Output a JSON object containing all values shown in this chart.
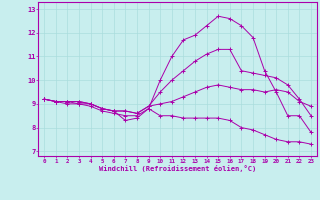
{
  "xlabel": "Windchill (Refroidissement éolien,°C)",
  "xlim": [
    -0.5,
    23.5
  ],
  "ylim": [
    6.8,
    13.3
  ],
  "yticks": [
    7,
    8,
    9,
    10,
    11,
    12,
    13
  ],
  "xticks": [
    0,
    1,
    2,
    3,
    4,
    5,
    6,
    7,
    8,
    9,
    10,
    11,
    12,
    13,
    14,
    15,
    16,
    17,
    18,
    19,
    20,
    21,
    22,
    23
  ],
  "line_color": "#aa00aa",
  "bg_color": "#c8eeee",
  "grid_color": "#aadddd",
  "line1_y": [
    9.2,
    9.1,
    9.1,
    9.1,
    9.0,
    8.8,
    8.7,
    8.3,
    8.4,
    8.8,
    8.5,
    8.5,
    8.4,
    8.4,
    8.4,
    8.4,
    8.3,
    8.0,
    7.9,
    7.7,
    7.5,
    7.4,
    7.4,
    7.3
  ],
  "line2_y": [
    9.2,
    9.1,
    9.1,
    9.1,
    9.0,
    8.8,
    8.7,
    8.7,
    8.6,
    8.9,
    9.0,
    9.1,
    9.3,
    9.5,
    9.7,
    9.8,
    9.7,
    9.6,
    9.6,
    9.5,
    9.6,
    9.5,
    9.1,
    8.9
  ],
  "line3_y": [
    9.2,
    9.1,
    9.1,
    9.0,
    9.0,
    8.8,
    8.7,
    8.7,
    8.6,
    8.9,
    9.5,
    10.0,
    10.4,
    10.8,
    11.1,
    11.3,
    11.3,
    10.4,
    10.3,
    10.2,
    10.1,
    9.8,
    9.2,
    8.5
  ],
  "line4_y": [
    9.2,
    9.1,
    9.0,
    9.0,
    8.9,
    8.7,
    8.6,
    8.5,
    8.5,
    8.8,
    10.0,
    11.0,
    11.7,
    11.9,
    12.3,
    12.7,
    12.6,
    12.3,
    11.8,
    10.4,
    9.5,
    8.5,
    8.5,
    7.8
  ]
}
